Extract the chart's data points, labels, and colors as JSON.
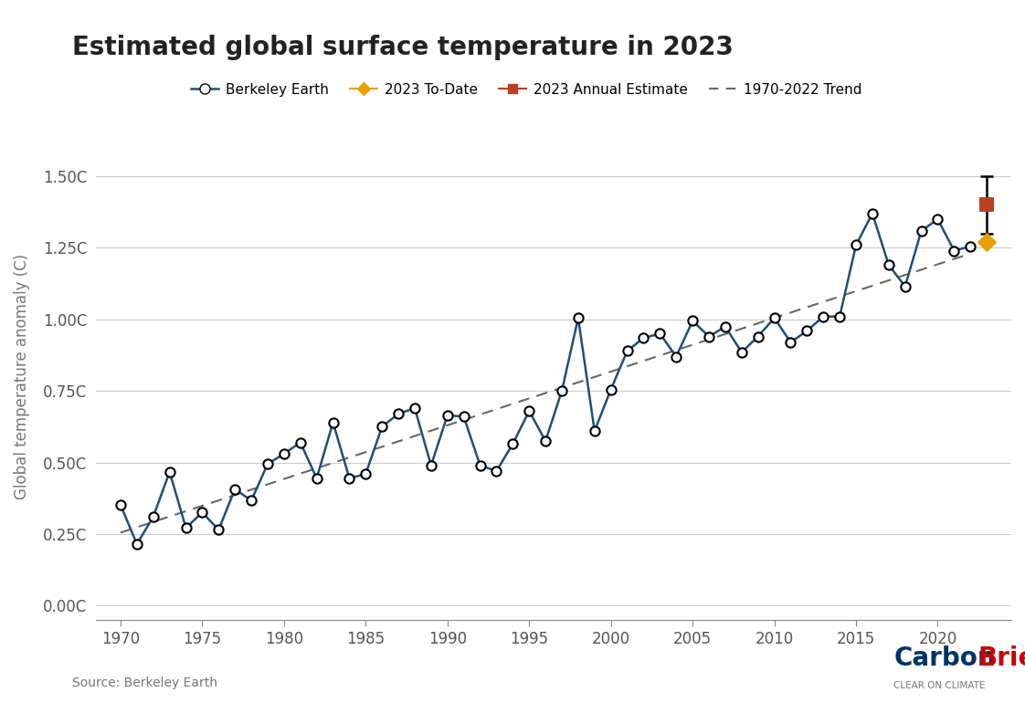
{
  "title": "Estimated global surface temperature in 2023",
  "ylabel": "Global temperature anomaly (C)",
  "source_text": "Source: Berkeley Earth",
  "background_color": "#ffffff",
  "plot_bg_color": "#ffffff",
  "title_fontsize": 20,
  "years": [
    1970,
    1971,
    1972,
    1973,
    1974,
    1975,
    1976,
    1977,
    1978,
    1979,
    1980,
    1981,
    1982,
    1983,
    1984,
    1985,
    1986,
    1987,
    1988,
    1989,
    1990,
    1991,
    1992,
    1993,
    1994,
    1995,
    1996,
    1997,
    1998,
    1999,
    2000,
    2001,
    2002,
    2003,
    2004,
    2005,
    2006,
    2007,
    2008,
    2009,
    2010,
    2011,
    2012,
    2013,
    2014,
    2015,
    2016,
    2017,
    2018,
    2019,
    2020,
    2021,
    2022
  ],
  "temps": [
    0.352,
    0.215,
    0.31,
    0.467,
    0.272,
    0.325,
    0.265,
    0.407,
    0.367,
    0.495,
    0.53,
    0.57,
    0.445,
    0.64,
    0.445,
    0.46,
    0.625,
    0.67,
    0.69,
    0.49,
    0.665,
    0.66,
    0.49,
    0.47,
    0.565,
    0.68,
    0.575,
    0.75,
    1.005,
    0.61,
    0.755,
    0.89,
    0.935,
    0.95,
    0.87,
    0.995,
    0.94,
    0.975,
    0.885,
    0.94,
    1.005,
    0.92,
    0.96,
    1.01,
    1.01,
    1.26,
    1.37,
    1.19,
    1.115,
    1.31,
    1.35,
    1.24,
    1.255
  ],
  "trend_years": [
    1970,
    2022
  ],
  "trend_values": [
    0.255,
    1.23
  ],
  "year_2023_annual": 1.4,
  "year_2023_annual_err": 0.1,
  "year_2023_ytd": 1.27,
  "line_color": "#1f4e79",
  "circle_color": "#000000",
  "circle_face": "#ffffff",
  "trend_color": "#666666",
  "annual_color": "#b94020",
  "ytd_color": "#e8a000",
  "ylim": [
    -0.05,
    1.65
  ],
  "yticks": [
    0.0,
    0.25,
    0.5,
    0.75,
    1.0,
    1.25,
    1.5
  ],
  "ytick_labels": [
    "0.00C",
    "0.25C",
    "0.50C",
    "0.75C",
    "1.00C",
    "1.25C",
    "1.50C"
  ],
  "xlim": [
    1968.5,
    2024.5
  ],
  "xticks": [
    1970,
    1975,
    1980,
    1985,
    1990,
    1995,
    2000,
    2005,
    2010,
    2015,
    2020
  ],
  "carbon_brief_navy": "#003366",
  "carbon_brief_red": "#cc0000",
  "carbon_brief_subtext": "CLEAR ON CLIMATE"
}
